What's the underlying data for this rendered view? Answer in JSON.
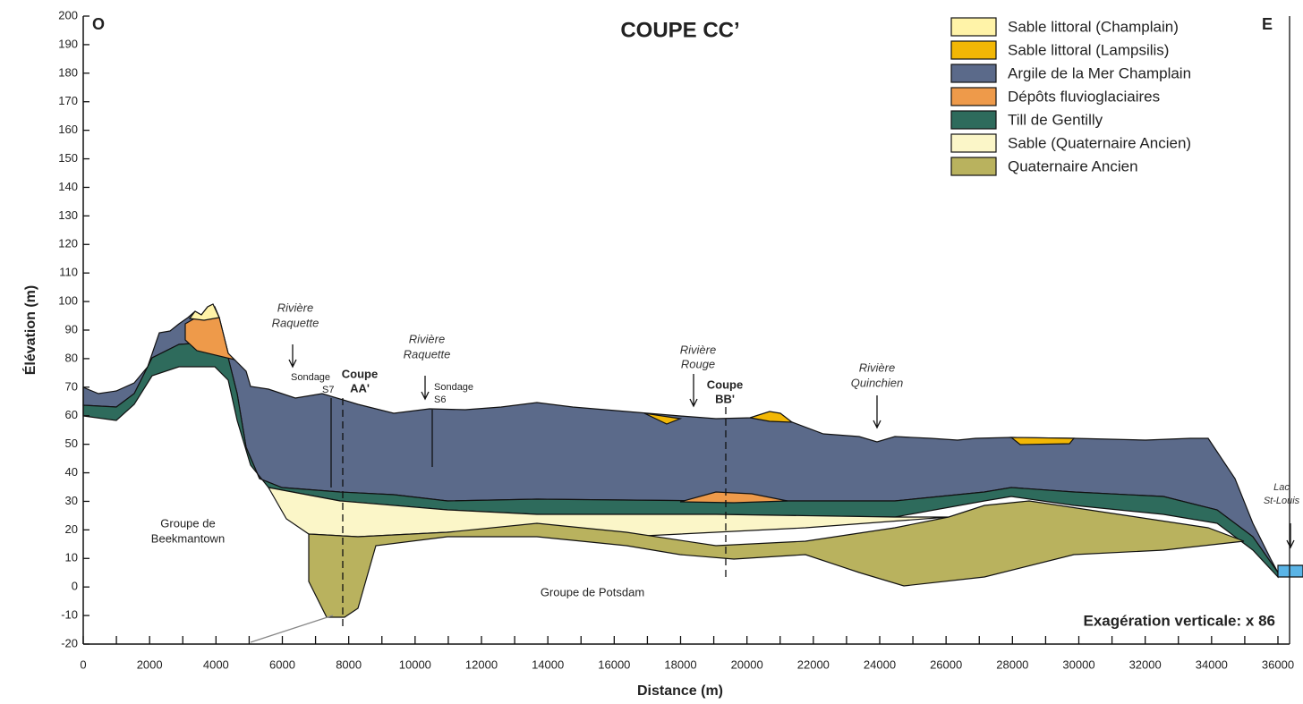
{
  "title": "COUPE CC’",
  "west": "O",
  "east": "E",
  "axes": {
    "x_label": "Distance (m)",
    "y_label": "Élévation (m)",
    "xlim": [
      0,
      36000
    ],
    "ylim": [
      -20,
      200
    ],
    "xticks": [
      0,
      2000,
      4000,
      6000,
      8000,
      10000,
      12000,
      14000,
      16000,
      18000,
      20000,
      22000,
      24000,
      26000,
      28000,
      30000,
      32000,
      34000,
      36000
    ],
    "yticks": [
      -20,
      -10,
      0,
      10,
      20,
      30,
      40,
      50,
      60,
      70,
      80,
      90,
      100,
      110,
      120,
      130,
      140,
      150,
      160,
      170,
      180,
      190,
      200
    ]
  },
  "legend": [
    {
      "label": "Sable littoral (Champlain)",
      "color": "#fff3a8"
    },
    {
      "label": "Sable littoral (Lampsilis)",
      "color": "#f2b705"
    },
    {
      "label": "Argile de la Mer Champlain",
      "color": "#5b6a8a"
    },
    {
      "label": "Dépôts fluvioglaciaires",
      "color": "#ee9a4a"
    },
    {
      "label": "Till de Gentilly",
      "color": "#2e6b5c"
    },
    {
      "label": "Sable (Quaternaire Ancien)",
      "color": "#fbf6c8"
    },
    {
      "label": "Quaternaire Ancien",
      "color": "#b9b25e"
    }
  ],
  "annotations": {
    "r1a": "Rivière",
    "r1b": "Raquette",
    "r2a": "Rivière",
    "r2b": "Raquette",
    "r3a": "Rivière",
    "r3b": "Rouge",
    "r4a": "Rivière",
    "r4b": "Quinchien",
    "lac_a": "Lac",
    "lac_b": "St-Louis",
    "s7a": "Sondage",
    "s7b": "S7",
    "s6a": "Sondage",
    "s6b": "S6",
    "aa_a": "Coupe",
    "aa_b": "AA'",
    "bb_a": "Coupe",
    "bb_b": "BB'",
    "beek_a": "Groupe de",
    "beek_b": "Beekmantown",
    "potsdam": "Groupe de Potsdam",
    "exag": "Exagération verticale: x 86"
  }
}
